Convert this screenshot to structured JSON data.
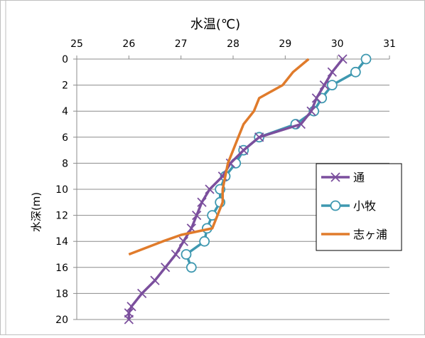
{
  "chart_data": {
    "type": "line",
    "xlabel": "水温(℃)",
    "ylabel": "水深(m)",
    "xlim": [
      25,
      31
    ],
    "ylim": [
      20,
      0
    ],
    "x_ticks": [
      "25",
      "26",
      "27",
      "28",
      "29",
      "30",
      "31"
    ],
    "y_ticks": [
      "0",
      "2",
      "4",
      "6",
      "8",
      "10",
      "12",
      "14",
      "16",
      "18",
      "20"
    ],
    "grid": true,
    "legend_position": "right",
    "series": [
      {
        "name": "通",
        "color": "#7b4f9d",
        "marker": "x",
        "points": [
          [
            30.1,
            0
          ],
          [
            29.9,
            1
          ],
          [
            29.75,
            2
          ],
          [
            29.6,
            3
          ],
          [
            29.5,
            4
          ],
          [
            29.3,
            5
          ],
          [
            28.5,
            6
          ],
          [
            28.2,
            7
          ],
          [
            27.95,
            8
          ],
          [
            27.8,
            9
          ],
          [
            27.55,
            10
          ],
          [
            27.4,
            11
          ],
          [
            27.3,
            12
          ],
          [
            27.2,
            13
          ],
          [
            27.05,
            14
          ],
          [
            26.9,
            15
          ],
          [
            26.7,
            16
          ],
          [
            26.5,
            17
          ],
          [
            26.25,
            18
          ],
          [
            26.05,
            19
          ],
          [
            26.0,
            19.5
          ],
          [
            26.0,
            20
          ]
        ]
      },
      {
        "name": "小牧",
        "color": "#3e98b0",
        "marker": "circle",
        "points": [
          [
            30.55,
            0
          ],
          [
            30.35,
            1
          ],
          [
            29.9,
            2
          ],
          [
            29.7,
            3
          ],
          [
            29.55,
            4
          ],
          [
            29.2,
            5
          ],
          [
            28.5,
            6
          ],
          [
            28.2,
            7
          ],
          [
            28.05,
            8
          ],
          [
            27.85,
            9
          ],
          [
            27.75,
            10
          ],
          [
            27.75,
            11
          ],
          [
            27.6,
            12
          ],
          [
            27.5,
            13
          ],
          [
            27.45,
            14
          ],
          [
            27.1,
            15
          ],
          [
            27.2,
            16
          ]
        ]
      },
      {
        "name": "志ヶ浦",
        "color": "#e07b2b",
        "marker": "none",
        "points": [
          [
            29.45,
            0
          ],
          [
            29.15,
            1
          ],
          [
            28.95,
            2
          ],
          [
            28.5,
            3
          ],
          [
            28.4,
            4
          ],
          [
            28.2,
            5
          ],
          [
            28.1,
            6
          ],
          [
            28.0,
            7
          ],
          [
            27.9,
            8
          ],
          [
            27.85,
            9
          ],
          [
            27.8,
            10
          ],
          [
            27.8,
            11
          ],
          [
            27.7,
            12
          ],
          [
            27.6,
            13
          ],
          [
            27.0,
            13.5
          ],
          [
            26.65,
            14
          ],
          [
            26.0,
            15
          ]
        ]
      }
    ]
  }
}
